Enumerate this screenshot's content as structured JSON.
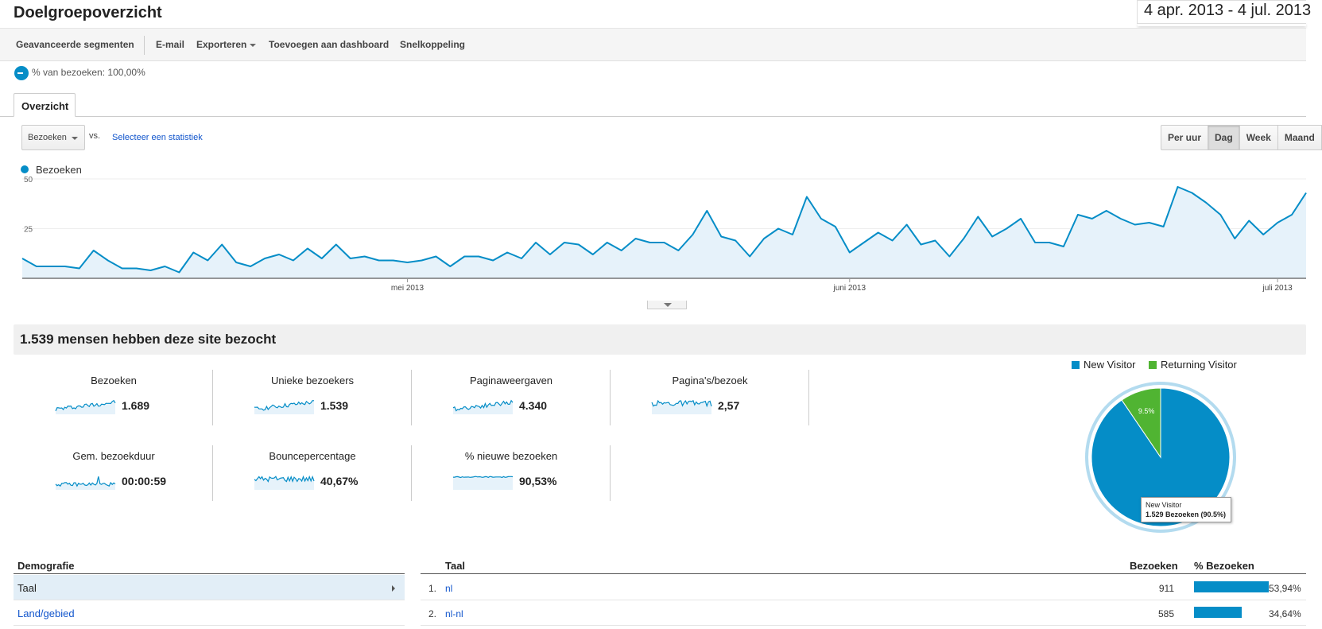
{
  "header": {
    "title": "Doelgroepoverzicht",
    "date_range": "4 apr. 2013 - 4 jul. 2013"
  },
  "toolbar": {
    "advanced_segments": "Geavanceerde segmenten",
    "email": "E-mail",
    "export": "Exporteren",
    "add_to_dashboard": "Toevoegen aan dashboard",
    "shortcut": "Snelkoppeling"
  },
  "segment": {
    "label": "% van bezoeken: 100,00%"
  },
  "tabs": {
    "overview": "Overzicht"
  },
  "chart_controls": {
    "metric": "Bezoeken",
    "vs": "vs.",
    "select_metric": "Selecteer een statistiek",
    "periods": [
      "Per uur",
      "Dag",
      "Week",
      "Maand"
    ],
    "active_period": "Dag"
  },
  "chart_data": {
    "type": "area",
    "series": [
      {
        "name": "Bezoeken",
        "color": "#058dc7",
        "values": [
          10,
          6,
          6,
          6,
          5,
          14,
          9,
          5,
          5,
          4,
          6,
          3,
          13,
          9,
          17,
          8,
          6,
          10,
          12,
          9,
          15,
          10,
          17,
          10,
          11,
          9,
          9,
          8,
          9,
          11,
          6,
          11,
          11,
          9,
          13,
          10,
          18,
          12,
          18,
          17,
          12,
          18,
          14,
          20,
          18,
          18,
          14,
          22,
          34,
          21,
          19,
          11,
          20,
          25,
          22,
          41,
          30,
          26,
          13,
          18,
          23,
          19,
          27,
          17,
          19,
          11,
          20,
          31,
          21,
          25,
          30,
          18,
          18,
          16,
          32,
          30,
          34,
          30,
          27,
          28,
          26,
          46,
          43,
          38,
          32,
          20,
          29,
          22,
          28,
          32,
          43
        ]
      }
    ],
    "x_tick_labels": [
      "mei 2013",
      "juni 2013",
      "juli 2013"
    ],
    "y_tick_labels": [
      "25",
      "50"
    ],
    "ylim": [
      0,
      50
    ],
    "legend": "top-left"
  },
  "summary": {
    "title": "1.539 mensen hebben deze site bezocht",
    "metrics": [
      {
        "label": "Bezoeken",
        "value": "1.689"
      },
      {
        "label": "Unieke bezoekers",
        "value": "1.539"
      },
      {
        "label": "Paginaweergaven",
        "value": "4.340"
      },
      {
        "label": "Pagina's/bezoek",
        "value": "2,57"
      },
      {
        "label": "Gem. bezoekduur",
        "value": "00:00:59"
      },
      {
        "label": "Bouncepercentage",
        "value": "40,67%"
      },
      {
        "label": "% nieuwe bezoeken",
        "value": "90,53%"
      }
    ]
  },
  "pie": {
    "legend": [
      {
        "name": "New Visitor",
        "color": "#058dc7"
      },
      {
        "name": "Returning Visitor",
        "color": "#50b432"
      }
    ],
    "slices": [
      {
        "name": "New Visitor",
        "percent": 90.5,
        "color": "#058dc7"
      },
      {
        "name": "Returning Visitor",
        "percent": 9.5,
        "color": "#50b432"
      }
    ],
    "slice_label": "9.5%",
    "tooltip_title": "New Visitor",
    "tooltip_value": "1.529 Bezoeken (90.5%)"
  },
  "demographics": {
    "heading": "Demografie",
    "items": [
      "Taal",
      "Land/gebied"
    ]
  },
  "language_table": {
    "col_language": "Taal",
    "col_visits": "Bezoeken",
    "col_pct": "% Bezoeken",
    "rows": [
      {
        "idx": "1.",
        "name": "nl",
        "visits": "911",
        "pct": "53,94%",
        "share": 53.94
      },
      {
        "idx": "2.",
        "name": "nl-nl",
        "visits": "585",
        "pct": "34,64%",
        "share": 34.64
      }
    ]
  }
}
